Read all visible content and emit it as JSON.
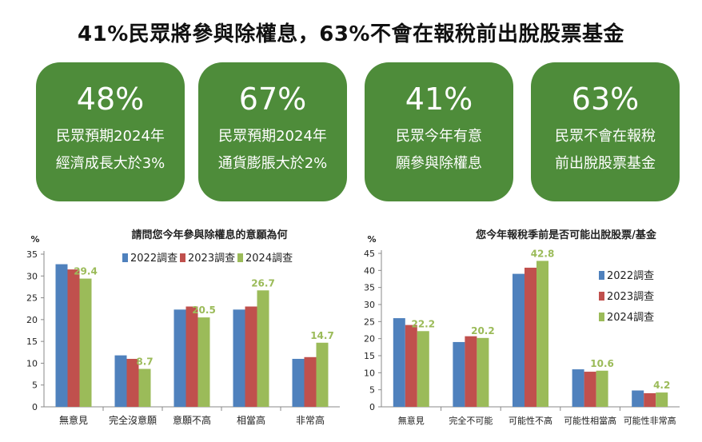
{
  "headline": "41%民眾將參與除權息，63%不會在報稅前出脫股票基金",
  "stat_cards": [
    {
      "value": "48%",
      "line1": "民眾預期2024年",
      "line2": "經濟成長大於3%"
    },
    {
      "value": "67%",
      "line1": "民眾預期2024年",
      "line2": "通貨膨脹大於2%"
    },
    {
      "value": "41%",
      "line1": "民眾今年有意",
      "line2": "願參與除權息"
    },
    {
      "value": "63%",
      "line1": "民眾不會在報稅",
      "line2": "前出脫股票基金"
    }
  ],
  "colors": {
    "card_green": "#4e8c3a",
    "series_2022": "#4f81bd",
    "series_2023": "#c0504d",
    "series_2024": "#9bbb59",
    "label_2024": "#9bbb59"
  },
  "chart_data": [
    {
      "type": "bar",
      "title": "請問您今年參與除權息的意願為何",
      "unit_label": "%",
      "categories": [
        "無意見",
        "完全沒意願",
        "意願不高",
        "相當高",
        "非常高"
      ],
      "series": [
        {
          "name": "2022調查",
          "values": [
            32.7,
            11.8,
            22.3,
            22.3,
            11.0
          ]
        },
        {
          "name": "2023調查",
          "values": [
            31.5,
            11.0,
            23.0,
            23.0,
            11.4
          ]
        },
        {
          "name": "2024調查",
          "values": [
            29.4,
            8.7,
            20.5,
            26.7,
            14.7
          ]
        }
      ],
      "data_labels": {
        "2024調查": [
          "29.4",
          "8.7",
          "20.5",
          "26.7",
          "14.7"
        ]
      },
      "yticks": [
        0,
        5,
        10,
        15,
        20,
        25,
        30,
        35
      ],
      "ylim": [
        0,
        35
      ],
      "legend": "top"
    },
    {
      "type": "bar",
      "title": "您今年報稅季前是否可能出脫股票/基金",
      "unit_label": "%",
      "categories": [
        "無意見",
        "完全不可能",
        "可能性不高",
        "可能性相當高",
        "可能性非常高"
      ],
      "series": [
        {
          "name": "2022調查",
          "values": [
            26.0,
            19.0,
            39.0,
            11.0,
            4.8
          ]
        },
        {
          "name": "2023調查",
          "values": [
            24.0,
            20.7,
            40.8,
            10.3,
            4.0
          ]
        },
        {
          "name": "2024調查",
          "values": [
            22.2,
            20.2,
            42.8,
            10.6,
            4.2
          ]
        }
      ],
      "data_labels": {
        "2024調查": [
          "22.2",
          "20.2",
          "42.8",
          "10.6",
          "4.2"
        ]
      },
      "yticks": [
        0,
        5,
        10,
        15,
        20,
        25,
        30,
        35,
        40,
        45
      ],
      "ylim": [
        0,
        45
      ],
      "legend": "right"
    }
  ]
}
